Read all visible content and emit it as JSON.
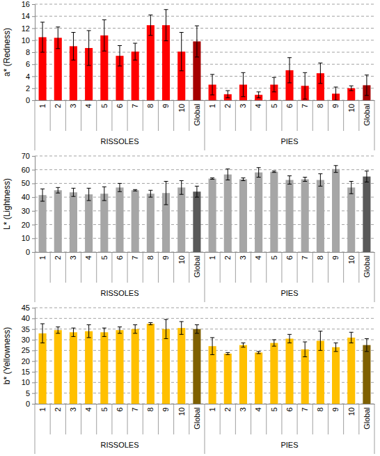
{
  "chart_data": [
    {
      "type": "bar",
      "y_label": "a* (Redness)",
      "ylim": [
        0,
        16
      ],
      "yticks": [
        0,
        2,
        4,
        6,
        8,
        10,
        12,
        14,
        16
      ],
      "grid": true,
      "groups": [
        {
          "name": "RISSOLES",
          "categories": [
            "1",
            "2",
            "3",
            "4",
            "5",
            "6",
            "7",
            "8",
            "9",
            "10",
            "Global"
          ],
          "values": [
            10.5,
            10.4,
            9.0,
            8.7,
            10.8,
            7.4,
            8.1,
            12.5,
            12.5,
            8.1,
            9.8
          ],
          "errors": [
            2.5,
            1.8,
            2.3,
            2.9,
            2.6,
            1.7,
            1.4,
            1.7,
            2.6,
            3.2,
            2.6
          ],
          "colors": [
            "#ff0000",
            "#ff0000",
            "#ff0000",
            "#ff0000",
            "#ff0000",
            "#ff0000",
            "#ff0000",
            "#ff0000",
            "#ff0000",
            "#ff0000",
            "#a50000"
          ]
        },
        {
          "name": "PIES",
          "categories": [
            "1",
            "2",
            "3",
            "4",
            "5",
            "6",
            "7",
            "8",
            "9",
            "10",
            "Global"
          ],
          "values": [
            2.6,
            1.0,
            2.6,
            0.9,
            2.6,
            5.0,
            2.4,
            4.5,
            1.1,
            2.0,
            2.5
          ],
          "errors": [
            1.7,
            0.6,
            2.0,
            0.5,
            1.2,
            2.1,
            2.2,
            1.7,
            1.1,
            0.4,
            1.7
          ],
          "colors": [
            "#ff0000",
            "#ff0000",
            "#ff0000",
            "#ff0000",
            "#ff0000",
            "#ff0000",
            "#ff0000",
            "#ff0000",
            "#ff0000",
            "#ff0000",
            "#a50000"
          ]
        }
      ]
    },
    {
      "type": "bar",
      "y_label": "L* (Lightness)",
      "ylim": [
        0,
        70
      ],
      "yticks": [
        0,
        10,
        20,
        30,
        40,
        50,
        60,
        70
      ],
      "grid": true,
      "groups": [
        {
          "name": "RISSOLES",
          "categories": [
            "1",
            "2",
            "3",
            "4",
            "5",
            "6",
            "7",
            "8",
            "9",
            "10",
            "Global"
          ],
          "values": [
            41.5,
            45,
            43.5,
            42,
            42.5,
            47,
            45,
            42.5,
            43,
            47,
            44
          ],
          "errors": [
            4.5,
            2,
            3,
            4.5,
            5,
            3,
            0.5,
            2.5,
            8.5,
            5,
            4
          ],
          "colors": [
            "#a6a6a6",
            "#a6a6a6",
            "#a6a6a6",
            "#a6a6a6",
            "#a6a6a6",
            "#a6a6a6",
            "#a6a6a6",
            "#a6a6a6",
            "#a6a6a6",
            "#a6a6a6",
            "#595959"
          ]
        },
        {
          "name": "PIES",
          "categories": [
            "1",
            "2",
            "3",
            "4",
            "5",
            "6",
            "7",
            "8",
            "9",
            "10",
            "Global"
          ],
          "values": [
            53.5,
            56.5,
            53,
            58,
            58.5,
            52.5,
            53,
            52.5,
            60.5,
            47,
            55
          ],
          "errors": [
            0.5,
            4,
            1,
            3.5,
            0.5,
            3,
            1.5,
            4.5,
            2.5,
            4.5,
            4
          ],
          "colors": [
            "#a6a6a6",
            "#a6a6a6",
            "#a6a6a6",
            "#a6a6a6",
            "#a6a6a6",
            "#a6a6a6",
            "#a6a6a6",
            "#a6a6a6",
            "#a6a6a6",
            "#a6a6a6",
            "#595959"
          ]
        }
      ]
    },
    {
      "type": "bar",
      "y_label": "b* (Yellowness)",
      "ylim": [
        0,
        45
      ],
      "yticks": [
        0,
        5,
        10,
        15,
        20,
        25,
        30,
        35,
        40,
        45
      ],
      "grid": true,
      "groups": [
        {
          "name": "RISSOLES",
          "categories": [
            "1",
            "2",
            "3",
            "4",
            "5",
            "6",
            "7",
            "8",
            "9",
            "10",
            "Global"
          ],
          "values": [
            33,
            34.5,
            33.5,
            34,
            33.5,
            34.5,
            35,
            37.5,
            35,
            35.5,
            35
          ],
          "errors": [
            4.5,
            1.5,
            2,
            3,
            2,
            1.5,
            2,
            0.5,
            4.5,
            3,
            2
          ],
          "colors": [
            "#ffc000",
            "#ffc000",
            "#ffc000",
            "#ffc000",
            "#ffc000",
            "#ffc000",
            "#ffc000",
            "#ffc000",
            "#ffc000",
            "#ffc000",
            "#7f6000"
          ]
        },
        {
          "name": "PIES",
          "categories": [
            "1",
            "2",
            "3",
            "4",
            "5",
            "6",
            "7",
            "8",
            "9",
            "10",
            "Global"
          ],
          "values": [
            27,
            23.5,
            27.5,
            24,
            28.5,
            30.5,
            25.5,
            29.5,
            26.5,
            31,
            27.5
          ],
          "errors": [
            4,
            0.5,
            1,
            0.5,
            1.5,
            2,
            3.5,
            4.5,
            2,
            2.5,
            3
          ],
          "colors": [
            "#ffc000",
            "#ffc000",
            "#ffc000",
            "#ffc000",
            "#ffc000",
            "#ffc000",
            "#ffc000",
            "#ffc000",
            "#ffc000",
            "#ffc000",
            "#7f6000"
          ]
        }
      ]
    }
  ]
}
